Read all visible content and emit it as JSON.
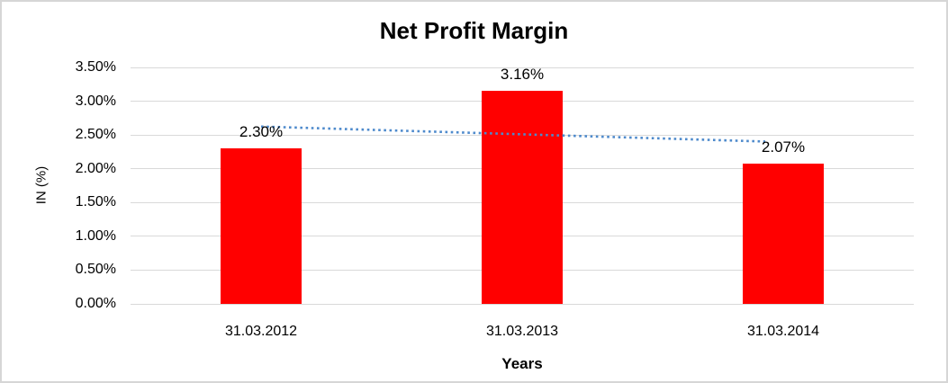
{
  "frame": {
    "background_color": "#FFFFFF",
    "border_color": "#D6D6D6"
  },
  "chart_data": {
    "type": "bar",
    "title": "Net Profit Margin",
    "xlabel": "Years",
    "ylabel": "IN (%)",
    "categories": [
      "31.03.2012",
      "31.03.2013",
      "31.03.2014"
    ],
    "values": [
      2.3,
      3.16,
      2.07
    ],
    "value_labels": [
      "2.30%",
      "3.16%",
      "2.07%"
    ],
    "y_tick_values": [
      3.5,
      3.0,
      2.5,
      2.0,
      1.5,
      1.0,
      0.5,
      0.0
    ],
    "y_tick_labels": [
      "3.50%",
      "3.00%",
      "2.50%",
      "2.00%",
      "1.50%",
      "1.00%",
      "0.50%",
      "0.00%"
    ],
    "ylim": [
      0,
      3.5
    ],
    "grid": true,
    "legend": "none",
    "bar_color": "#FF0000",
    "gridline_color": "#D9D9D9",
    "trendline": {
      "type": "linear",
      "style": "dotted",
      "color": "#4E8ACC",
      "start_value": 2.625,
      "end_value": 2.395
    }
  }
}
